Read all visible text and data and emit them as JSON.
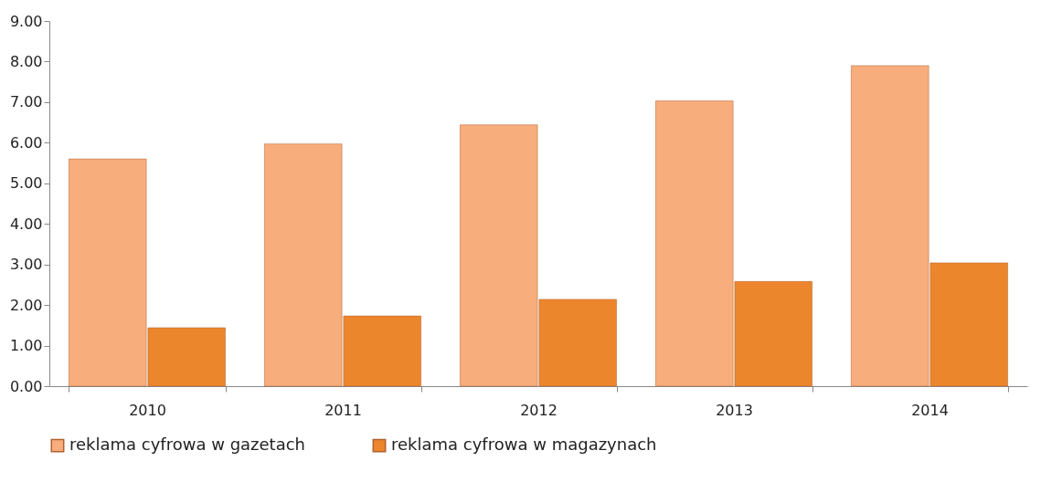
{
  "chart_data": {
    "type": "bar",
    "categories": [
      "2010",
      "2011",
      "2012",
      "2013",
      "2014"
    ],
    "series": [
      {
        "name": "reklama cyfrowa w gazetach",
        "color": "#f7ad7c",
        "values": [
          5.6,
          5.97,
          6.44,
          7.03,
          7.9
        ]
      },
      {
        "name": "reklama cyfrowa w magazynach",
        "color": "#ec862c",
        "values": [
          1.44,
          1.73,
          2.14,
          2.58,
          3.04
        ]
      }
    ],
    "ylim": [
      0,
      9
    ],
    "yticks": [
      {
        "value": 0,
        "label": "0.00"
      },
      {
        "value": 1,
        "label": "1.00"
      },
      {
        "value": 2,
        "label": "2.00"
      },
      {
        "value": 3,
        "label": "3.00"
      },
      {
        "value": 4,
        "label": "4.00"
      },
      {
        "value": 5,
        "label": "5.00"
      },
      {
        "value": 6,
        "label": "6.00"
      },
      {
        "value": 7,
        "label": "7.00"
      },
      {
        "value": 8,
        "label": "8.00"
      },
      {
        "value": 9,
        "label": "9.00"
      }
    ],
    "grid": false,
    "legend": "bottom"
  }
}
